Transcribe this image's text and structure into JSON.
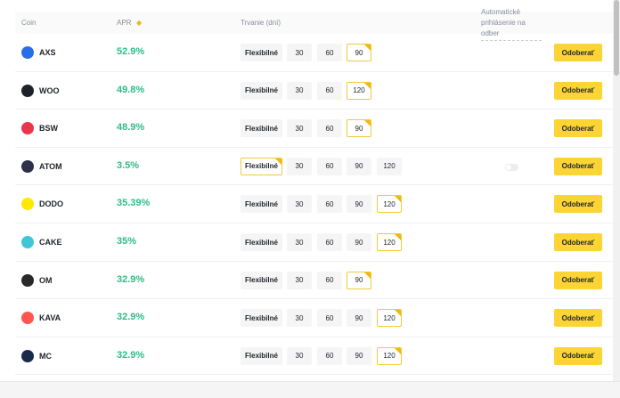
{
  "header": {
    "coin": "Coin",
    "apr": "APR",
    "duration": "Trvanie (dní)",
    "auto": "Automatické prihlásenie na odber"
  },
  "subscribe_label": "Odoberať",
  "rows": [
    {
      "coin": "AXS",
      "apr": "52.9%",
      "color": "#2a6ee6",
      "durations": [
        "Flexibilné",
        "30",
        "60",
        "90"
      ],
      "selected": "90"
    },
    {
      "coin": "WOO",
      "apr": "49.8%",
      "color": "#1e2329",
      "durations": [
        "Flexibilné",
        "30",
        "60",
        "120"
      ],
      "selected": "120"
    },
    {
      "coin": "BSW",
      "apr": "48.9%",
      "color": "#e8374b",
      "durations": [
        "Flexibilné",
        "30",
        "60",
        "90"
      ],
      "selected": "90"
    },
    {
      "coin": "ATOM",
      "apr": "3.5%",
      "color": "#2e3148",
      "durations": [
        "Flexibilné",
        "30",
        "60",
        "90",
        "120"
      ],
      "selected": "Flexibilné",
      "toggle": true
    },
    {
      "coin": "DODO",
      "apr": "35.39%",
      "color": "#ffe804",
      "durations": [
        "Flexibilné",
        "30",
        "60",
        "90",
        "120"
      ],
      "selected": "120"
    },
    {
      "coin": "CAKE",
      "apr": "35%",
      "color": "#3fc7d6",
      "durations": [
        "Flexibilné",
        "30",
        "60",
        "90",
        "120"
      ],
      "selected": "120"
    },
    {
      "coin": "OM",
      "apr": "32.9%",
      "color": "#2a2a2a",
      "durations": [
        "Flexibilné",
        "30",
        "60",
        "90"
      ],
      "selected": "90"
    },
    {
      "coin": "KAVA",
      "apr": "32.9%",
      "color": "#ff564f",
      "durations": [
        "Flexibilné",
        "30",
        "60",
        "90",
        "120"
      ],
      "selected": "120"
    },
    {
      "coin": "MC",
      "apr": "32.9%",
      "color": "#1a2a4a",
      "durations": [
        "Flexibilné",
        "30",
        "60",
        "90",
        "120"
      ],
      "selected": "120"
    }
  ]
}
